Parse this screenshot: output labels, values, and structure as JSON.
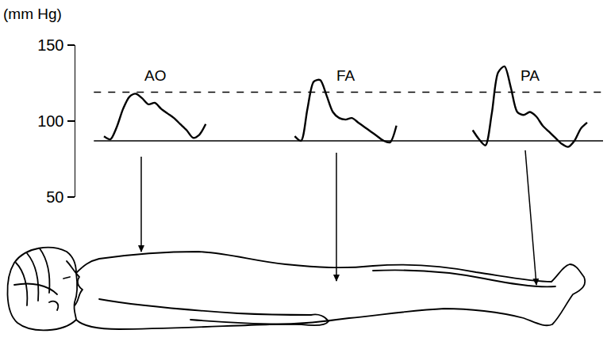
{
  "chart_data": {
    "type": "line",
    "y_label": "(mm Hg)",
    "categories": [
      null,
      null,
      null,
      null,
      null,
      null,
      null,
      null,
      null,
      null,
      null,
      null,
      null,
      null,
      null,
      null,
      null,
      null,
      null,
      null,
      null,
      null,
      null,
      null,
      null,
      null,
      null,
      null,
      null,
      null,
      null,
      null,
      null,
      null,
      null,
      null,
      null,
      null,
      null,
      null,
      null,
      null,
      null,
      null,
      null,
      null,
      null,
      null,
      null,
      null,
      null,
      null,
      null,
      null,
      null,
      null,
      null,
      null,
      null,
      null,
      null,
      null,
      null,
      null,
      null,
      null,
      null,
      null,
      null,
      null,
      null,
      null,
      null,
      null,
      null,
      null,
      null,
      null,
      null,
      null,
      null,
      null,
      null
    ],
    "series": [
      {
        "name": "AO",
        "color": "#000000",
        "values": [
          null,
          null,
          null,
          null,
          90,
          88,
          96,
          108,
          116,
          118,
          115,
          111,
          112,
          108,
          105,
          102,
          98,
          94,
          89,
          91,
          98,
          null,
          null,
          null,
          null,
          null,
          null,
          null,
          null,
          null,
          null,
          null,
          null,
          null,
          null,
          null,
          null,
          null,
          null,
          null,
          null,
          null,
          null,
          null,
          null,
          null,
          null,
          null,
          null,
          null,
          null,
          null,
          null,
          null,
          null,
          null,
          null,
          null,
          null,
          null,
          null,
          null,
          null,
          null,
          null,
          null,
          null,
          null,
          null,
          null,
          null,
          null,
          null,
          null,
          null,
          null,
          null,
          null,
          null,
          null,
          null,
          null,
          null
        ]
      },
      {
        "name": "FA",
        "color": "#000000",
        "values": [
          null,
          null,
          null,
          null,
          null,
          null,
          null,
          null,
          null,
          null,
          null,
          null,
          null,
          null,
          null,
          null,
          null,
          null,
          null,
          null,
          null,
          null,
          null,
          null,
          null,
          null,
          null,
          null,
          null,
          null,
          null,
          null,
          null,
          null,
          90,
          87,
          108,
          126,
          127,
          117,
          106,
          102,
          101,
          102,
          99,
          96,
          93,
          90,
          87,
          86,
          97,
          null,
          null,
          null,
          null,
          null,
          null,
          null,
          null,
          null,
          null,
          null,
          null,
          null,
          null,
          null,
          null,
          null,
          null,
          null,
          null,
          null,
          null,
          null,
          null,
          null,
          null,
          null,
          null,
          null,
          null,
          null,
          null
        ]
      },
      {
        "name": "PA",
        "color": "#000000",
        "values": [
          null,
          null,
          null,
          null,
          null,
          null,
          null,
          null,
          null,
          null,
          null,
          null,
          null,
          null,
          null,
          null,
          null,
          null,
          null,
          null,
          null,
          null,
          null,
          null,
          null,
          null,
          null,
          null,
          null,
          null,
          null,
          null,
          null,
          null,
          null,
          null,
          null,
          null,
          null,
          null,
          null,
          null,
          null,
          null,
          null,
          null,
          null,
          null,
          null,
          null,
          null,
          null,
          null,
          null,
          null,
          null,
          null,
          null,
          null,
          null,
          null,
          null,
          94,
          88,
          84,
          105,
          132,
          136,
          122,
          106,
          104,
          106,
          103,
          97,
          93,
          89,
          85,
          83,
          87,
          95,
          99,
          null,
          null
        ]
      }
    ],
    "ylim": [
      50,
      150
    ],
    "yticks": [
      50,
      100,
      150
    ],
    "grid": false,
    "tick_labels": "y",
    "reference_lines": [
      {
        "value": 119,
        "line_style": "dashed",
        "color": "#000000"
      },
      {
        "value": 87,
        "line_style": "solid",
        "color": "#000000"
      }
    ]
  }
}
